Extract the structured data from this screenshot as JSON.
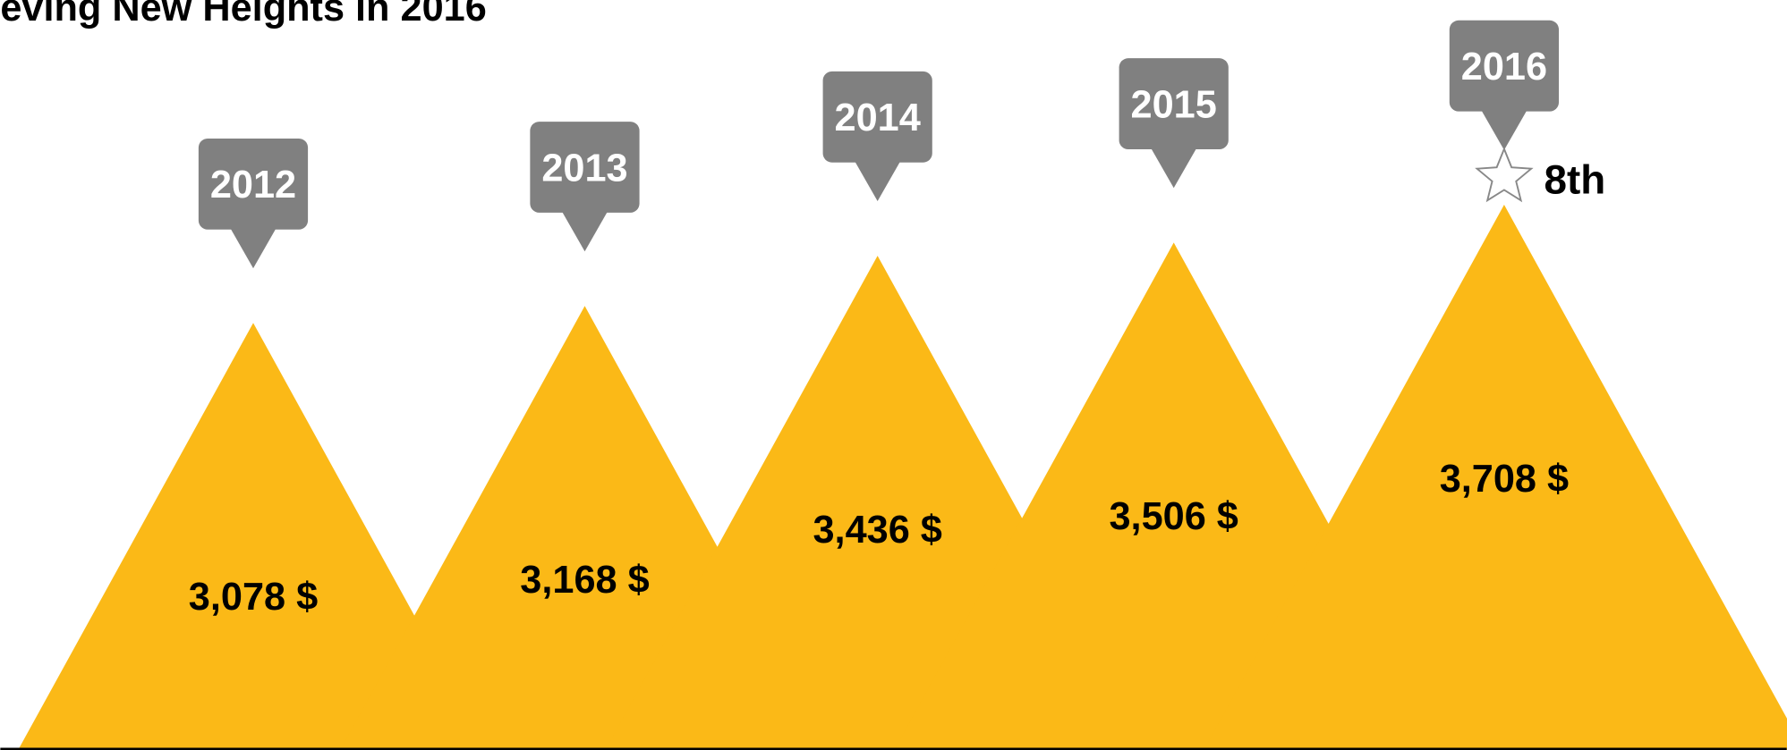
{
  "chart_data": {
    "type": "mountain",
    "title": "eving New Heights in 2016",
    "categories": [
      "2012",
      "2013",
      "2014",
      "2015",
      "2016"
    ],
    "values": [
      3078,
      3168,
      3436,
      3506,
      3708
    ],
    "value_labels": [
      "3,078 $",
      "3,168 $",
      "3,436 $",
      "3,506 $",
      "3,708 $"
    ],
    "color": "#fbb917",
    "marker_color": "#808080",
    "ylim": [
      800,
      4800
    ],
    "annotation": "8th"
  }
}
